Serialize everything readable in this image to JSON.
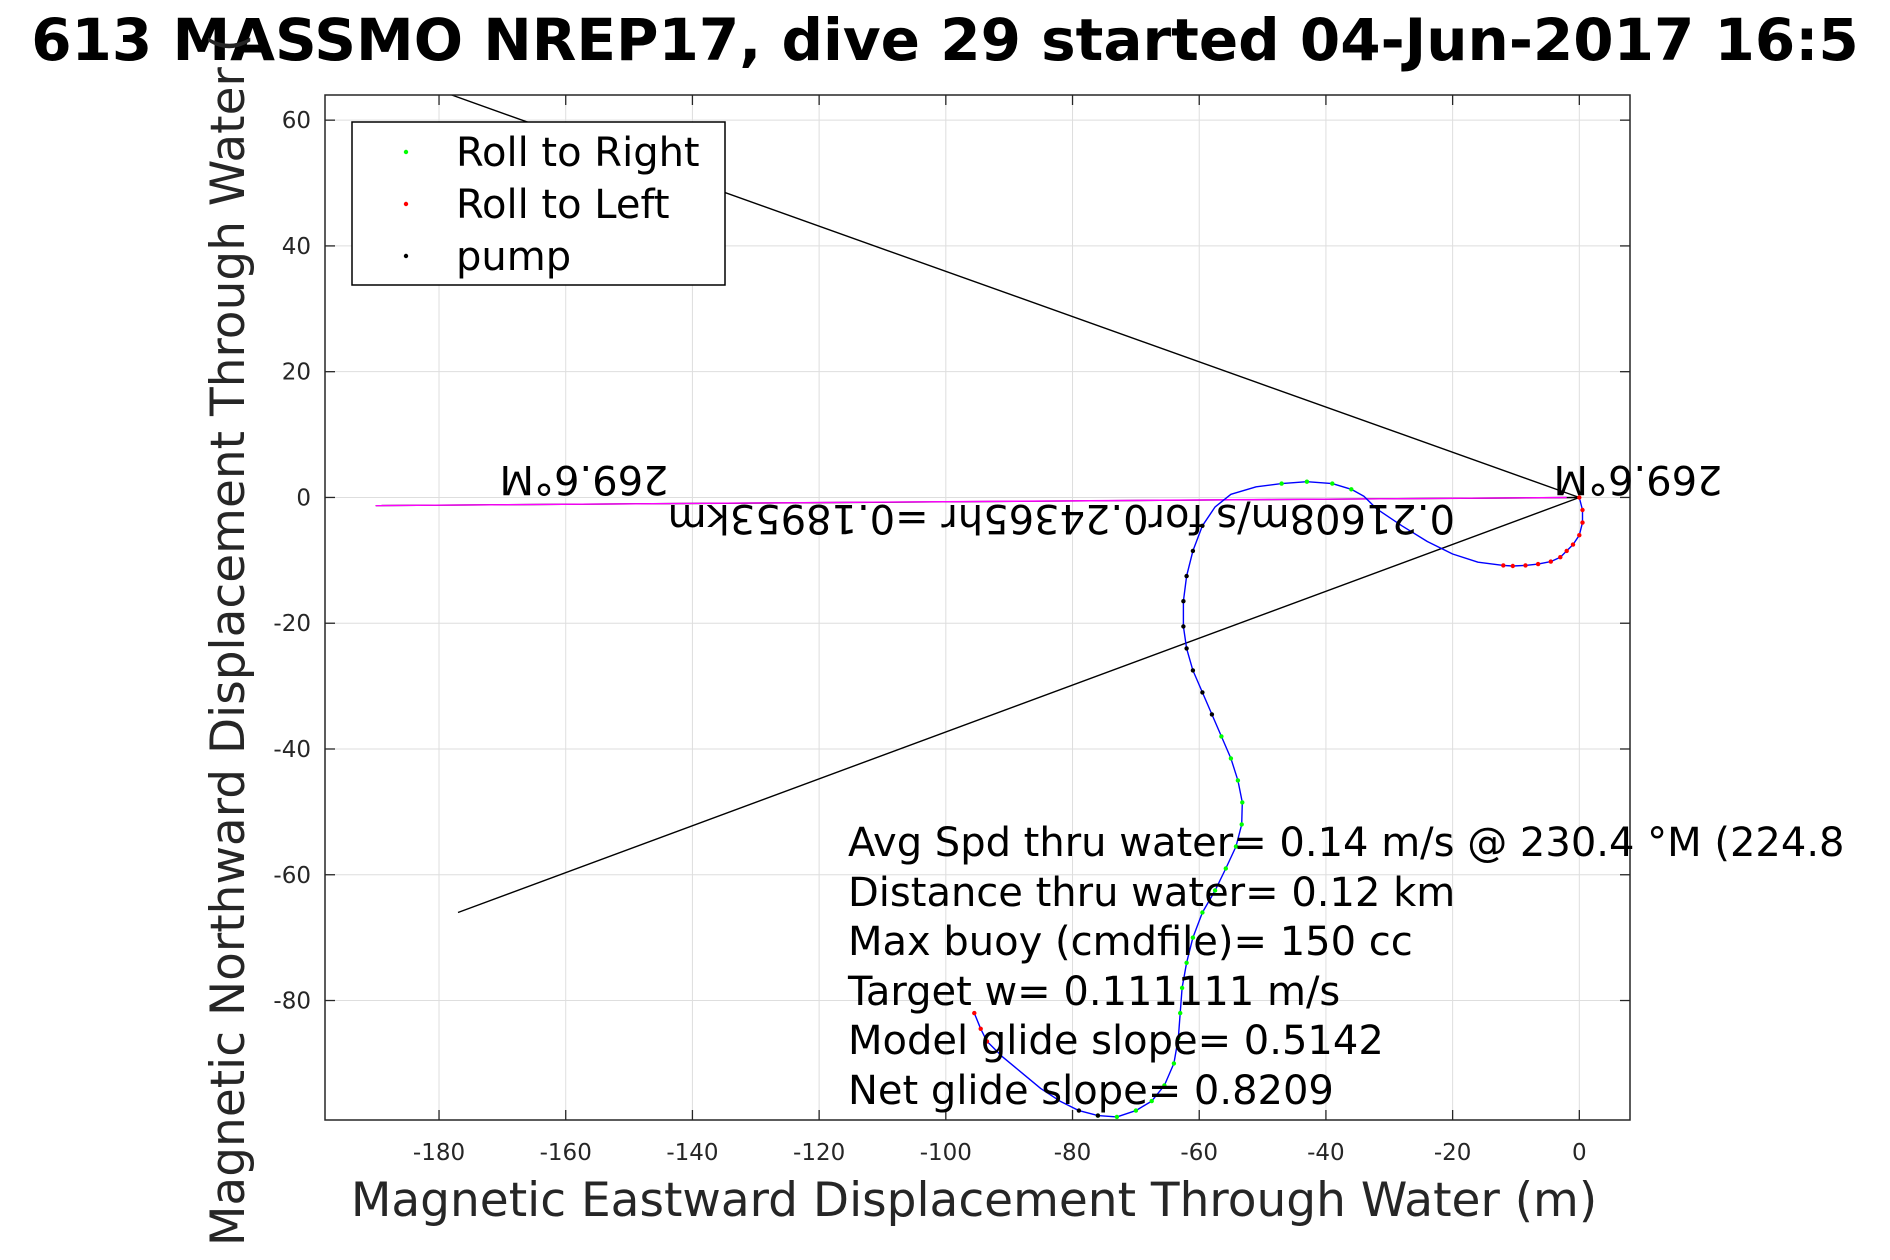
{
  "chart_data": {
    "type": "scatter",
    "title": "613 MASSMO NREP17, dive 29 started 04-Jun-2017 16:5",
    "xlabel": "Magnetic Eastward Displacement Through Water (m)",
    "ylabel": "Magnetic Northward Displacement Through Water (",
    "xlim": [
      -198,
      8
    ],
    "ylim": [
      -99,
      64
    ],
    "xticks": [
      -180,
      -160,
      -140,
      -120,
      -100,
      -80,
      -60,
      -40,
      -20,
      0
    ],
    "yticks": [
      -80,
      -60,
      -40,
      -20,
      0,
      20,
      40,
      60
    ],
    "grid": true,
    "legend_position": "top-left",
    "legend": [
      {
        "label": "Roll to Right",
        "color": "#00ff00"
      },
      {
        "label": "Roll to Left",
        "color": "#ff0000"
      },
      {
        "label": "pump",
        "color": "#000000"
      }
    ],
    "track": {
      "name": "glider track",
      "color": "#0000ff",
      "points": [
        [
          0,
          0
        ],
        [
          0.5,
          -2
        ],
        [
          0.5,
          -4
        ],
        [
          0,
          -6
        ],
        [
          -1,
          -7.5
        ],
        [
          -2,
          -8.5
        ],
        [
          -3,
          -9.5
        ],
        [
          -4.5,
          -10.2
        ],
        [
          -6.5,
          -10.6
        ],
        [
          -8.5,
          -10.8
        ],
        [
          -10.5,
          -10.9
        ],
        [
          -12,
          -10.8
        ],
        [
          -16,
          -10.3
        ],
        [
          -20,
          -9
        ],
        [
          -24,
          -7
        ],
        [
          -28,
          -4.5
        ],
        [
          -32,
          -1.8
        ],
        [
          -34,
          0.2
        ],
        [
          -36,
          1.3
        ],
        [
          -39,
          2.2
        ],
        [
          -43,
          2.5
        ],
        [
          -47,
          2.2
        ],
        [
          -51,
          1.7
        ],
        [
          -55,
          0.5
        ],
        [
          -57.5,
          -1.5
        ],
        [
          -59.5,
          -4.5
        ],
        [
          -61,
          -8.5
        ],
        [
          -62,
          -12.5
        ],
        [
          -62.5,
          -16.5
        ],
        [
          -62.5,
          -20.5
        ],
        [
          -62,
          -24
        ],
        [
          -61,
          -27.5
        ],
        [
          -59.5,
          -31
        ],
        [
          -58,
          -34.5
        ],
        [
          -56.5,
          -38
        ],
        [
          -55,
          -41.5
        ],
        [
          -53.9,
          -45
        ],
        [
          -53.2,
          -48.5
        ],
        [
          -53.3,
          -52
        ],
        [
          -54.2,
          -55.5
        ],
        [
          -55.8,
          -59
        ],
        [
          -57.5,
          -62.5
        ],
        [
          -59.5,
          -66
        ],
        [
          -61,
          -70
        ],
        [
          -62,
          -74
        ],
        [
          -62.7,
          -78
        ],
        [
          -63,
          -82
        ],
        [
          -63.3,
          -86
        ],
        [
          -64,
          -90
        ],
        [
          -65.5,
          -93.5
        ],
        [
          -67.5,
          -96
        ],
        [
          -70,
          -97.5
        ],
        [
          -73,
          -98.5
        ],
        [
          -76,
          -98.3
        ],
        [
          -79,
          -97.5
        ],
        [
          -82,
          -96
        ],
        [
          -85,
          -94
        ],
        [
          -88,
          -91.5
        ],
        [
          -91,
          -89
        ],
        [
          -93.5,
          -86.5
        ],
        [
          -94.5,
          -84.5
        ],
        [
          -95.5,
          -82
        ]
      ]
    },
    "markers": [
      {
        "series": "Roll to Right",
        "color": "#00ff00",
        "points": [
          [
            -36,
            1.3
          ],
          [
            -39,
            2.2
          ],
          [
            -43,
            2.5
          ],
          [
            -47,
            2.2
          ],
          [
            -56.5,
            -38
          ],
          [
            -55,
            -41.5
          ],
          [
            -53.9,
            -45
          ],
          [
            -53.2,
            -48.5
          ],
          [
            -53.3,
            -52
          ],
          [
            -54.2,
            -55.5
          ],
          [
            -55.8,
            -59
          ],
          [
            -57.5,
            -62.5
          ],
          [
            -59.5,
            -66
          ],
          [
            -61,
            -70
          ],
          [
            -62,
            -74
          ],
          [
            -62.7,
            -78
          ],
          [
            -63,
            -82
          ],
          [
            -63.3,
            -86
          ],
          [
            -64,
            -90
          ],
          [
            -65.5,
            -93.5
          ],
          [
            -67.5,
            -96
          ],
          [
            -70,
            -97.5
          ],
          [
            -73,
            -98.5
          ],
          [
            -76,
            -98.3
          ]
        ]
      },
      {
        "series": "Roll to Left",
        "color": "#ff0000",
        "points": [
          [
            0,
            0
          ],
          [
            0.5,
            -2
          ],
          [
            0.5,
            -4
          ],
          [
            0,
            -6
          ],
          [
            -1,
            -7.5
          ],
          [
            -2,
            -8.5
          ],
          [
            -3,
            -9.5
          ],
          [
            -4.5,
            -10.2
          ],
          [
            -6.5,
            -10.6
          ],
          [
            -8.5,
            -10.8
          ],
          [
            -10.5,
            -10.9
          ],
          [
            -12,
            -10.8
          ],
          [
            -93.5,
            -86.5
          ],
          [
            -94.5,
            -84.5
          ],
          [
            -95.5,
            -82
          ]
        ]
      },
      {
        "series": "pump",
        "color": "#000000",
        "points": [
          [
            -59.5,
            -4.5
          ],
          [
            -61,
            -8.5
          ],
          [
            -62,
            -12.5
          ],
          [
            -62.5,
            -16.5
          ],
          [
            -62.5,
            -20.5
          ],
          [
            -62,
            -24
          ],
          [
            -61,
            -27.5
          ],
          [
            -59.5,
            -31
          ],
          [
            -58,
            -34.5
          ],
          [
            -76,
            -98.3
          ],
          [
            -79,
            -97.5
          ]
        ]
      }
    ],
    "reference_lines": [
      {
        "name": "wedge-upper",
        "color": "#000000",
        "points": [
          [
            0,
            0
          ],
          [
            -178,
            64
          ]
        ]
      },
      {
        "name": "wedge-lower",
        "color": "#000000",
        "points": [
          [
            0,
            0
          ],
          [
            -177,
            -66
          ]
        ]
      },
      {
        "name": "heading-line",
        "color": "#000000",
        "points": [
          [
            0,
            0
          ],
          [
            -190,
            -1.3
          ]
        ]
      },
      {
        "name": "heading-line-overlay",
        "color": "#ff00ff",
        "points": [
          [
            -2,
            0
          ],
          [
            -190,
            -1.3
          ]
        ]
      }
    ],
    "annotations": {
      "heading_far": "269.6°M",
      "heading_near": "269.6°M",
      "leg_summary": "0.21608m/s for0.24365hr =0.18953km"
    },
    "stats": [
      "Avg Spd thru water=  0.14 m/s @ 230.4 °M (224.8",
      "Distance thru water=  0.12 km",
      "Max buoy (cmdfile)= 150 cc",
      "Target w= 0.111111 m/s",
      "Model glide slope= 0.5142",
      "Net glide slope= 0.8209"
    ]
  }
}
